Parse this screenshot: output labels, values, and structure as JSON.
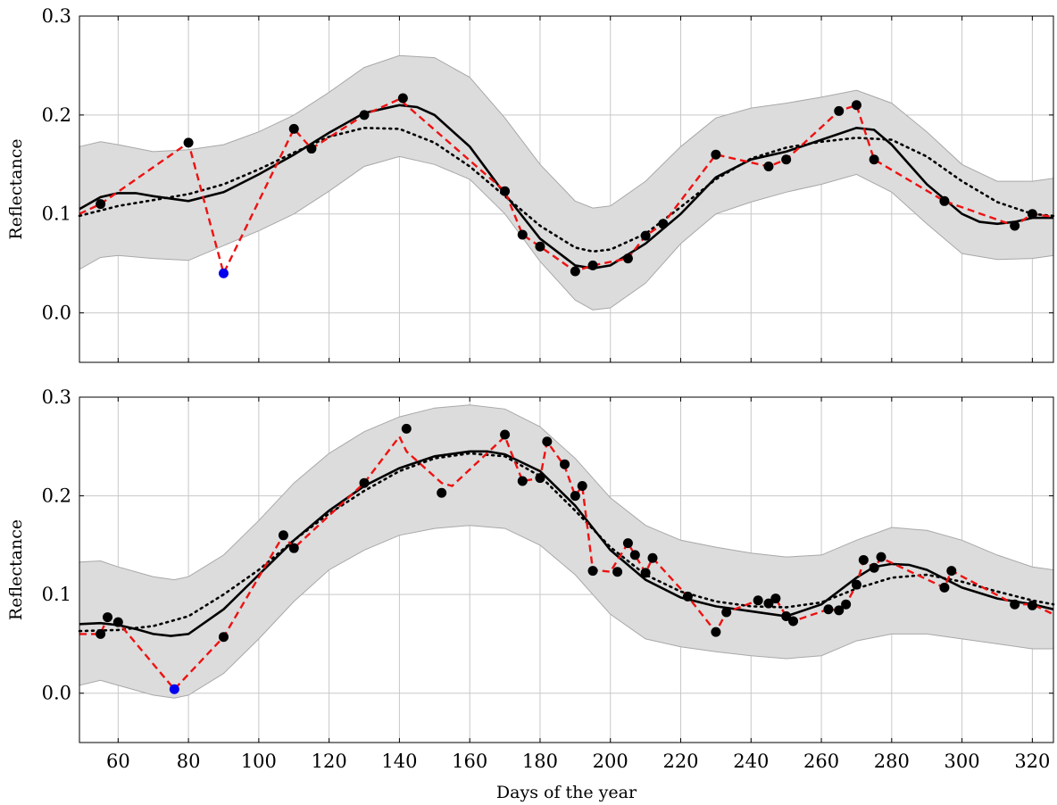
{
  "chart_data": [
    {
      "type": "line",
      "title": "",
      "xlabel": "",
      "ylabel": "Reflectance",
      "xlim": [
        49,
        326
      ],
      "ylim": [
        -0.05,
        0.3
      ],
      "xticks": [
        "60",
        "80",
        "100",
        "120",
        "140",
        "160",
        "180",
        "200",
        "220",
        "240",
        "260",
        "280",
        "300",
        "320"
      ],
      "yticks": [
        "0.0",
        "0.1",
        "0.2",
        "0.3"
      ],
      "grid": true,
      "colors": {
        "band": "#dcdcdc",
        "solid": "#000000",
        "dotted": "#000000",
        "dashed": "#ee1111",
        "points": "#000000",
        "outlier": "#0000ee"
      },
      "band": {
        "x": [
          49,
          55,
          60,
          70,
          80,
          90,
          100,
          110,
          120,
          130,
          140,
          150,
          160,
          170,
          180,
          190,
          195,
          200,
          210,
          220,
          230,
          240,
          250,
          260,
          270,
          280,
          290,
          300,
          310,
          320,
          326
        ],
        "upper": [
          0.168,
          0.173,
          0.17,
          0.163,
          0.165,
          0.17,
          0.183,
          0.2,
          0.223,
          0.248,
          0.26,
          0.258,
          0.238,
          0.197,
          0.15,
          0.113,
          0.106,
          0.108,
          0.133,
          0.168,
          0.197,
          0.207,
          0.212,
          0.218,
          0.225,
          0.212,
          0.183,
          0.15,
          0.133,
          0.133,
          0.136
        ],
        "lower": [
          0.044,
          0.056,
          0.058,
          0.055,
          0.053,
          0.068,
          0.083,
          0.1,
          0.123,
          0.148,
          0.158,
          0.15,
          0.135,
          0.1,
          0.052,
          0.013,
          0.003,
          0.005,
          0.03,
          0.07,
          0.1,
          0.112,
          0.122,
          0.13,
          0.14,
          0.122,
          0.09,
          0.06,
          0.054,
          0.055,
          0.058
        ]
      },
      "series": [
        {
          "style": "solid",
          "x": [
            49,
            55,
            60,
            65,
            70,
            80,
            90,
            100,
            110,
            120,
            130,
            140,
            145,
            150,
            160,
            170,
            180,
            190,
            195,
            200,
            210,
            220,
            230,
            240,
            250,
            260,
            270,
            275,
            280,
            290,
            300,
            305,
            310,
            315,
            320,
            326
          ],
          "y": [
            0.105,
            0.117,
            0.121,
            0.121,
            0.118,
            0.113,
            0.122,
            0.14,
            0.16,
            0.182,
            0.202,
            0.21,
            0.208,
            0.2,
            0.168,
            0.12,
            0.075,
            0.048,
            0.045,
            0.048,
            0.07,
            0.1,
            0.137,
            0.155,
            0.163,
            0.175,
            0.187,
            0.185,
            0.17,
            0.13,
            0.1,
            0.092,
            0.09,
            0.092,
            0.096,
            0.096
          ]
        },
        {
          "style": "dotted",
          "x": [
            49,
            60,
            70,
            80,
            90,
            100,
            110,
            120,
            130,
            140,
            150,
            160,
            170,
            180,
            190,
            195,
            200,
            210,
            220,
            230,
            240,
            250,
            260,
            270,
            280,
            290,
            300,
            310,
            320,
            326
          ],
          "y": [
            0.098,
            0.108,
            0.114,
            0.12,
            0.13,
            0.145,
            0.162,
            0.178,
            0.187,
            0.186,
            0.172,
            0.148,
            0.118,
            0.088,
            0.066,
            0.062,
            0.064,
            0.08,
            0.107,
            0.135,
            0.156,
            0.167,
            0.173,
            0.177,
            0.175,
            0.158,
            0.133,
            0.112,
            0.1,
            0.098
          ]
        },
        {
          "style": "dashed",
          "x": [
            49,
            55,
            80,
            90,
            110,
            115,
            130,
            140,
            170,
            175,
            180,
            190,
            195,
            205,
            210,
            215,
            230,
            245,
            250,
            265,
            270,
            275,
            295,
            315,
            320,
            326
          ],
          "y": [
            0.1,
            0.11,
            0.172,
            0.04,
            0.186,
            0.166,
            0.2,
            0.216,
            0.123,
            0.079,
            0.067,
            0.042,
            0.048,
            0.055,
            0.078,
            0.09,
            0.16,
            0.148,
            0.155,
            0.204,
            0.21,
            0.155,
            0.113,
            0.088,
            0.1,
            0.097
          ]
        }
      ],
      "points": {
        "x": [
          55,
          80,
          110,
          115,
          130,
          141,
          170,
          175,
          180,
          190,
          195,
          205,
          210,
          215,
          230,
          245,
          250,
          265,
          270,
          275,
          295,
          315,
          320
        ],
        "y": [
          0.11,
          0.172,
          0.186,
          0.166,
          0.2,
          0.217,
          0.123,
          0.079,
          0.067,
          0.042,
          0.048,
          0.055,
          0.078,
          0.09,
          0.16,
          0.148,
          0.155,
          0.204,
          0.21,
          0.155,
          0.113,
          0.088,
          0.1
        ]
      },
      "outlier": {
        "x": 90,
        "y": 0.04
      }
    },
    {
      "type": "line",
      "title": "",
      "xlabel": "Days of the year",
      "ylabel": "Reflectance",
      "xlim": [
        49,
        326
      ],
      "ylim": [
        -0.05,
        0.3
      ],
      "xticks": [
        "60",
        "80",
        "100",
        "120",
        "140",
        "160",
        "180",
        "200",
        "220",
        "240",
        "260",
        "280",
        "300",
        "320"
      ],
      "yticks": [
        "0.0",
        "0.1",
        "0.2",
        "0.3"
      ],
      "grid": true,
      "colors": {
        "band": "#dcdcdc",
        "solid": "#000000",
        "dotted": "#000000",
        "dashed": "#ee1111",
        "points": "#000000",
        "outlier": "#0000ee"
      },
      "band": {
        "x": [
          49,
          55,
          60,
          70,
          76,
          80,
          90,
          100,
          110,
          120,
          130,
          140,
          150,
          160,
          170,
          180,
          190,
          200,
          210,
          220,
          230,
          240,
          250,
          260,
          270,
          280,
          290,
          300,
          310,
          320,
          326
        ],
        "upper": [
          0.133,
          0.134,
          0.128,
          0.118,
          0.115,
          0.118,
          0.14,
          0.175,
          0.213,
          0.243,
          0.265,
          0.28,
          0.289,
          0.292,
          0.288,
          0.27,
          0.238,
          0.198,
          0.17,
          0.155,
          0.148,
          0.142,
          0.138,
          0.14,
          0.155,
          0.168,
          0.165,
          0.155,
          0.14,
          0.128,
          0.125
        ],
        "lower": [
          0.008,
          0.013,
          0.008,
          -0.002,
          -0.005,
          -0.002,
          0.02,
          0.055,
          0.093,
          0.125,
          0.145,
          0.16,
          0.167,
          0.17,
          0.167,
          0.15,
          0.12,
          0.08,
          0.055,
          0.047,
          0.042,
          0.038,
          0.035,
          0.038,
          0.053,
          0.06,
          0.06,
          0.055,
          0.05,
          0.045,
          0.045
        ]
      },
      "series": [
        {
          "style": "solid",
          "x": [
            49,
            55,
            60,
            65,
            70,
            75,
            80,
            90,
            100,
            110,
            120,
            130,
            140,
            150,
            160,
            165,
            170,
            180,
            190,
            200,
            210,
            220,
            230,
            240,
            250,
            260,
            270,
            275,
            280,
            285,
            290,
            300,
            310,
            320,
            326
          ],
          "y": [
            0.07,
            0.071,
            0.069,
            0.065,
            0.06,
            0.058,
            0.06,
            0.085,
            0.12,
            0.155,
            0.185,
            0.21,
            0.228,
            0.24,
            0.245,
            0.245,
            0.242,
            0.225,
            0.19,
            0.145,
            0.115,
            0.097,
            0.088,
            0.083,
            0.078,
            0.09,
            0.117,
            0.128,
            0.131,
            0.13,
            0.125,
            0.107,
            0.096,
            0.09,
            0.085
          ]
        },
        {
          "style": "dotted",
          "x": [
            49,
            60,
            70,
            80,
            90,
            100,
            110,
            120,
            130,
            140,
            150,
            160,
            170,
            180,
            190,
            200,
            210,
            220,
            230,
            240,
            250,
            260,
            270,
            280,
            290,
            300,
            310,
            320,
            326
          ],
          "y": [
            0.063,
            0.064,
            0.068,
            0.078,
            0.1,
            0.125,
            0.155,
            0.182,
            0.205,
            0.225,
            0.238,
            0.243,
            0.24,
            0.22,
            0.185,
            0.148,
            0.12,
            0.103,
            0.093,
            0.088,
            0.087,
            0.092,
            0.106,
            0.117,
            0.12,
            0.113,
            0.103,
            0.094,
            0.09
          ]
        },
        {
          "style": "dashed",
          "x": [
            49,
            55,
            57,
            60,
            76,
            90,
            107,
            110,
            130,
            140,
            142,
            152,
            155,
            170,
            175,
            180,
            182,
            187,
            190,
            192,
            195,
            200,
            205,
            207,
            210,
            212,
            222,
            230,
            233,
            242,
            245,
            247,
            250,
            252,
            262,
            265,
            267,
            270,
            272,
            275,
            277,
            295,
            297,
            315,
            320,
            326
          ],
          "y": [
            0.06,
            0.06,
            0.077,
            0.072,
            0.004,
            0.057,
            0.16,
            0.147,
            0.213,
            0.26,
            0.245,
            0.213,
            0.21,
            0.26,
            0.215,
            0.218,
            0.255,
            0.23,
            0.2,
            0.21,
            0.125,
            0.123,
            0.152,
            0.14,
            0.122,
            0.137,
            0.098,
            0.062,
            0.082,
            0.094,
            0.091,
            0.096,
            0.078,
            0.073,
            0.085,
            0.084,
            0.09,
            0.11,
            0.134,
            0.127,
            0.137,
            0.107,
            0.124,
            0.09,
            0.09,
            0.08
          ]
        }
      ],
      "points": {
        "x": [
          55,
          57,
          60,
          90,
          107,
          110,
          130,
          142,
          152,
          170,
          175,
          180,
          182,
          187,
          190,
          192,
          195,
          202,
          205,
          207,
          210,
          212,
          222,
          230,
          233,
          242,
          245,
          247,
          250,
          252,
          262,
          265,
          267,
          270,
          272,
          275,
          277,
          295,
          297,
          315,
          320
        ],
        "y": [
          0.06,
          0.077,
          0.072,
          0.057,
          0.16,
          0.147,
          0.213,
          0.268,
          0.203,
          0.262,
          0.215,
          0.218,
          0.255,
          0.232,
          0.2,
          0.21,
          0.124,
          0.123,
          0.152,
          0.14,
          0.122,
          0.137,
          0.098,
          0.062,
          0.082,
          0.094,
          0.091,
          0.096,
          0.078,
          0.073,
          0.085,
          0.084,
          0.09,
          0.11,
          0.135,
          0.127,
          0.138,
          0.107,
          0.124,
          0.09,
          0.089
        ]
      },
      "outlier": {
        "x": 76,
        "y": 0.004
      }
    }
  ]
}
